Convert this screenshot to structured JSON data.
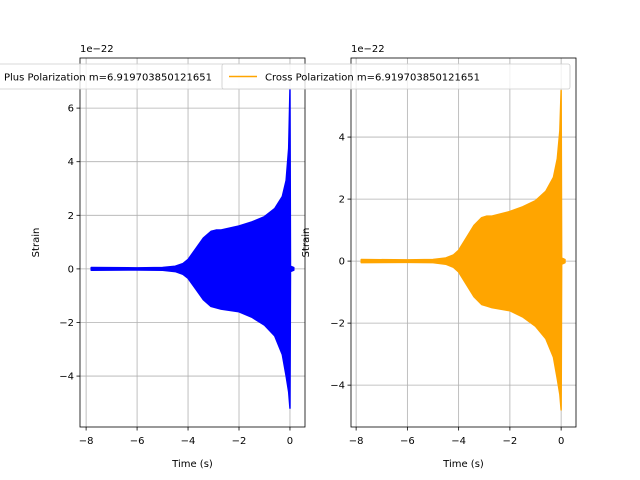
{
  "chart_data": [
    {
      "type": "line",
      "name": "plus",
      "legend": "Plus Polarization m=6.919703850121651",
      "color": "#0000ff",
      "xlabel": "Time (s)",
      "ylabel": "Strain",
      "offset_text": "1e−22",
      "xlim": [
        -8.24,
        0.59
      ],
      "ylim": [
        -5.9,
        7.87
      ],
      "xticks": [
        -8,
        -6,
        -4,
        -2,
        0
      ],
      "xtick_labels": [
        "−8",
        "−6",
        "−4",
        "−2",
        "0"
      ],
      "yticks": [
        -4,
        -2,
        0,
        2,
        4,
        6
      ],
      "ytick_labels": [
        "−4",
        "−2",
        "0",
        "2",
        "4",
        "6"
      ],
      "grid": true,
      "legend_position": "top-left",
      "envelope": {
        "t": [
          -7.8,
          -6,
          -5,
          -4.5,
          -4.2,
          -4,
          -3.7,
          -3.4,
          -3.1,
          -2.9,
          -2.7,
          -2,
          -1.5,
          -1,
          -0.6,
          -0.3,
          -0.15,
          -0.05,
          0,
          0.02,
          0.15
        ],
        "upper": [
          0.05,
          0.04,
          0.05,
          0.1,
          0.2,
          0.35,
          0.75,
          1.15,
          1.4,
          1.45,
          1.45,
          1.6,
          1.75,
          1.95,
          2.25,
          2.7,
          3.3,
          4.5,
          6.7,
          0.1,
          0.05
        ],
        "lower": [
          -0.05,
          -0.04,
          -0.05,
          -0.1,
          -0.2,
          -0.35,
          -0.75,
          -1.15,
          -1.4,
          -1.45,
          -1.5,
          -1.6,
          -1.8,
          -2.1,
          -2.5,
          -3.2,
          -4.0,
          -4.6,
          -5.2,
          -0.1,
          -0.05
        ]
      }
    },
    {
      "type": "line",
      "name": "cross",
      "legend": "Cross Polarization m=6.919703850121651",
      "color": "#ffa500",
      "xlabel": "Time (s)",
      "ylabel": "Strain",
      "offset_text": "1e−22",
      "xlim": [
        -8.2,
        0.58
      ],
      "ylim": [
        -5.35,
        6.55
      ],
      "xticks": [
        -8,
        -6,
        -4,
        -2,
        0
      ],
      "xtick_labels": [
        "−8",
        "−6",
        "−4",
        "−2",
        "0"
      ],
      "yticks": [
        -4,
        -2,
        0,
        2,
        4
      ],
      "ytick_labels": [
        "−4",
        "−2",
        "0",
        "2",
        "4"
      ],
      "grid": true,
      "legend_position": "top-right",
      "envelope": {
        "t": [
          -7.8,
          -6,
          -5,
          -4.5,
          -4.2,
          -4,
          -3.7,
          -3.4,
          -3.1,
          -2.9,
          -2.7,
          -2,
          -1.5,
          -1,
          -0.6,
          -0.3,
          -0.15,
          -0.05,
          0,
          0.02,
          0.15
        ],
        "upper": [
          0.05,
          0.04,
          0.05,
          0.1,
          0.2,
          0.35,
          0.75,
          1.15,
          1.4,
          1.45,
          1.45,
          1.6,
          1.75,
          1.95,
          2.25,
          2.7,
          3.3,
          4.2,
          5.5,
          0.1,
          0.05
        ],
        "lower": [
          -0.05,
          -0.04,
          -0.05,
          -0.1,
          -0.2,
          -0.35,
          -0.75,
          -1.15,
          -1.4,
          -1.45,
          -1.5,
          -1.6,
          -1.8,
          -2.1,
          -2.5,
          -3.1,
          -3.8,
          -4.3,
          -4.8,
          -0.1,
          -0.05
        ]
      }
    }
  ]
}
